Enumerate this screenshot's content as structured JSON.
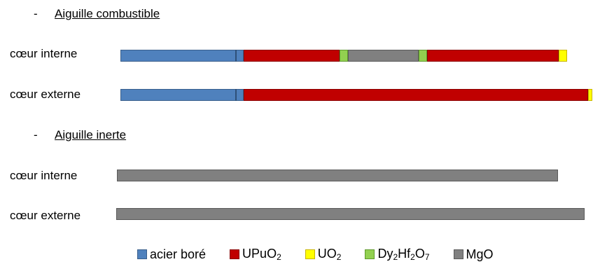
{
  "colors": {
    "acier_bore": "#4f81bd",
    "acier_bore_edge": "#3a5f8c",
    "upuo2": "#c00000",
    "upuo2_edge": "#8a0000",
    "uo2": "#ffff00",
    "uo2_edge": "#c8b400",
    "dy2hf2o7": "#92d050",
    "dy2hf2o7_edge": "#5f9a2c",
    "mgo": "#808080",
    "mgo_edge": "#5a5a5a",
    "divider": "#2f5078"
  },
  "sections": [
    {
      "heading": {
        "dash": "-",
        "text": "Aiguille combustible"
      },
      "rows": [
        {
          "label": "cœur interne",
          "segments": [
            {
              "material": "acier_bore",
              "length": 176
            },
            {
              "material": "upuo2",
              "length": 137
            },
            {
              "material": "dy2hf2o7",
              "length": 12
            },
            {
              "material": "mgo",
              "length": 101
            },
            {
              "material": "dy2hf2o7",
              "length": 12
            },
            {
              "material": "upuo2",
              "length": 188
            },
            {
              "material": "uo2",
              "length": 12
            }
          ]
        },
        {
          "label": "cœur externe",
          "segments": [
            {
              "material": "acier_bore",
              "length": 176
            },
            {
              "material": "upuo2",
              "length": 492
            },
            {
              "material": "uo2",
              "length": 6
            }
          ]
        }
      ]
    },
    {
      "heading": {
        "dash": "-",
        "text": "Aiguille inerte"
      },
      "rows": [
        {
          "label": "cœur interne",
          "segments": [
            {
              "material": "mgo",
              "length": 630
            }
          ]
        },
        {
          "label": "cœur externe",
          "segments": [
            {
              "material": "mgo",
              "length": 669
            }
          ]
        }
      ]
    }
  ],
  "legend": [
    {
      "key": "acier_bore",
      "text": "acier boré"
    },
    {
      "key": "upuo2",
      "text": "UPuO",
      "sub": "2"
    },
    {
      "key": "uo2",
      "text": "UO",
      "sub": "2"
    },
    {
      "key": "dy2hf2o7",
      "parts": [
        [
          "Dy",
          ""
        ],
        [
          "2",
          "sub"
        ],
        [
          "Hf",
          ""
        ],
        [
          "2",
          "sub"
        ],
        [
          "O",
          ""
        ],
        [
          "7",
          "sub"
        ]
      ]
    },
    {
      "key": "mgo",
      "text": "MgO"
    }
  ]
}
